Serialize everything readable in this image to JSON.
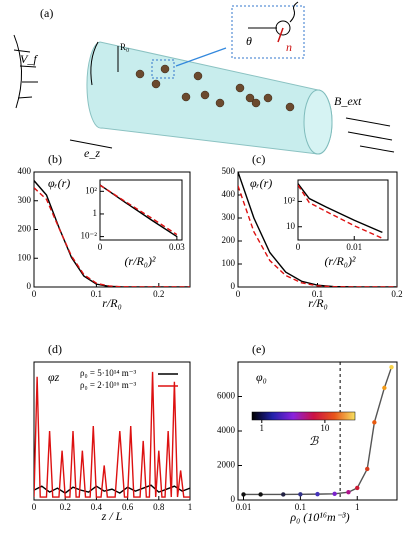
{
  "diagram": {
    "panel_label": "(a)",
    "flow_label": "V_f",
    "radius_label": "R₀",
    "angle_label": "θ",
    "director_label": "n",
    "field_label": "B_ext",
    "axis_label": "e_z"
  },
  "chart_data": [
    {
      "type": "line",
      "panel_label": "(b)",
      "curve_label": "φᵣ(r)",
      "xlabel": "r/R₀",
      "xlim": [
        0,
        0.25
      ],
      "xticks": [
        0,
        0.1,
        0.2
      ],
      "ylim": [
        0,
        400
      ],
      "yticks": [
        0,
        100,
        200,
        300,
        400
      ],
      "series": [
        {
          "color": "#000000",
          "dash": false,
          "x": [
            0,
            0.02,
            0.04,
            0.06,
            0.08,
            0.1,
            0.12,
            0.14,
            0.16,
            0.2,
            0.25
          ],
          "values": [
            370,
            320,
            207,
            103,
            38,
            10,
            2.2,
            0.4,
            0,
            0,
            0
          ]
        },
        {
          "color": "#dd1111",
          "dash": true,
          "x": [
            0,
            0.02,
            0.04,
            0.06,
            0.08,
            0.1,
            0.12,
            0.14,
            0.16,
            0.2,
            0.25
          ],
          "values": [
            345,
            305,
            205,
            108,
            43,
            13,
            3.5,
            0.8,
            0.1,
            0,
            0
          ]
        }
      ],
      "inset": {
        "type": "line",
        "xlabel": "(r/R₀)²",
        "xlim": [
          0,
          0.032
        ],
        "xticks": [
          0,
          0.03
        ],
        "ylog": true,
        "ylim": [
          0.005,
          1000
        ],
        "yticks": [
          {
            "value": 0.01,
            "label": "10⁻²"
          },
          1,
          {
            "value": 100,
            "label": "10²"
          }
        ],
        "series": [
          {
            "color": "#000000",
            "dash": false,
            "x": [
              0,
              0.01,
              0.02,
              0.03
            ],
            "values": [
              370,
              10,
              0.3,
              0.01
            ]
          },
          {
            "color": "#dd1111",
            "dash": true,
            "x": [
              0,
              0.01,
              0.02,
              0.03
            ],
            "values": [
              345,
              12,
              0.45,
              0.015
            ]
          }
        ]
      }
    },
    {
      "type": "line",
      "panel_label": "(c)",
      "curve_label": "φᵣ(r)",
      "xlabel": "r/R₀",
      "xlim": [
        0,
        0.2
      ],
      "xticks": [
        0,
        0.1,
        0.2
      ],
      "ylim": [
        0,
        500
      ],
      "yticks": [
        0,
        100,
        200,
        300,
        400,
        500
      ],
      "series": [
        {
          "color": "#000000",
          "dash": false,
          "x": [
            0,
            0.02,
            0.04,
            0.06,
            0.08,
            0.1,
            0.12,
            0.15,
            0.2
          ],
          "values": [
            500,
            300,
            150,
            65,
            25,
            8,
            2,
            0,
            0
          ]
        },
        {
          "color": "#dd1111",
          "dash": true,
          "x": [
            0,
            0.02,
            0.04,
            0.06,
            0.08,
            0.1,
            0.12,
            0.15,
            0.2
          ],
          "values": [
            440,
            240,
            115,
            50,
            18,
            5,
            1,
            0,
            0
          ]
        }
      ],
      "inset": {
        "type": "line",
        "xlabel": "(r/R₀)²",
        "xlim": [
          0,
          0.016
        ],
        "xticks": [
          0,
          0.01
        ],
        "ylog": true,
        "ylim": [
          3,
          700
        ],
        "yticks": [
          10,
          {
            "value": 100,
            "label": "10²"
          }
        ],
        "series": [
          {
            "color": "#000000",
            "dash": false,
            "x": [
              0,
              0.002,
              0.005,
              0.01,
              0.015
            ],
            "values": [
              500,
              130,
              60,
              18,
              6
            ]
          },
          {
            "color": "#dd1111",
            "dash": true,
            "x": [
              0,
              0.002,
              0.005,
              0.01,
              0.015
            ],
            "values": [
              440,
              90,
              40,
              11,
              3.5
            ]
          }
        ]
      }
    },
    {
      "type": "line",
      "panel_label": "(d)",
      "curve_label": "φz",
      "xlabel": "z / L",
      "legend": "upper left",
      "xlim": [
        0,
        1
      ],
      "xticks": [
        0,
        0.2,
        0.4,
        0.6,
        0.8,
        1
      ],
      "ylim": [
        0,
        14
      ],
      "series": [
        {
          "name": "ρ₀ = 5·10¹⁴ m⁻³",
          "color": "#000000",
          "dash": false,
          "x": [
            0,
            0.05,
            0.1,
            0.15,
            0.2,
            0.25,
            0.3,
            0.35,
            0.4,
            0.45,
            0.5,
            0.55,
            0.6,
            0.65,
            0.7,
            0.75,
            0.8,
            0.85,
            0.9,
            0.95,
            1
          ],
          "values": [
            1.0,
            1.4,
            0.8,
            1.2,
            0.7,
            1.3,
            1.0,
            0.8,
            1.4,
            0.9,
            1.1,
            0.7,
            1.3,
            0.9,
            1.2,
            1.5,
            0.8,
            1.1,
            1.4,
            0.9,
            1.2
          ]
        },
        {
          "name": "ρ₀ = 2·10¹⁶ m⁻³",
          "color": "#dd1111",
          "dash": false,
          "x": [
            0,
            0.02,
            0.04,
            0.08,
            0.1,
            0.12,
            0.16,
            0.18,
            0.2,
            0.23,
            0.25,
            0.27,
            0.29,
            0.31,
            0.33,
            0.36,
            0.38,
            0.4,
            0.43,
            0.45,
            0.47,
            0.52,
            0.55,
            0.58,
            0.6,
            0.62,
            0.64,
            0.68,
            0.7,
            0.72,
            0.74,
            0.76,
            0.78,
            0.8,
            0.82,
            0.84,
            0.86,
            0.88,
            0.9,
            0.92,
            0.94,
            0.96,
            1
          ],
          "values": [
            0.3,
            12.5,
            0.3,
            0.3,
            7,
            0.3,
            0.3,
            5,
            0.3,
            0.3,
            7,
            0.3,
            0.3,
            5,
            0.3,
            0.3,
            7.5,
            0.3,
            0.3,
            3.5,
            0.3,
            0.3,
            7,
            0.3,
            0.3,
            7.5,
            0.3,
            0.3,
            6,
            0.3,
            0.3,
            13,
            0.3,
            5,
            0.3,
            0.3,
            7,
            0.3,
            12,
            0.3,
            3,
            0.3,
            0.3
          ]
        }
      ]
    },
    {
      "type": "scatter-line",
      "panel_label": "(e)",
      "curve_label": "φ₀",
      "xlabel": "ρ₀ (10¹⁶m⁻³)",
      "xlog": true,
      "xlim": [
        0.008,
        5
      ],
      "xticks": [
        0.01,
        0.1,
        1
      ],
      "ylim": [
        0,
        8000
      ],
      "yticks": [
        0,
        2000,
        4000,
        6000
      ],
      "vline": 0.5,
      "series": [
        {
          "color": "#555555",
          "dash": false,
          "x": [
            0.01,
            0.02,
            0.05,
            0.1,
            0.2,
            0.4,
            0.7,
            1,
            1.5,
            2,
            3,
            4
          ],
          "values": [
            320,
            320,
            320,
            330,
            340,
            360,
            450,
            700,
            1800,
            4500,
            6500,
            7700
          ],
          "colors": [
            "#111111",
            "#111111",
            "#222244",
            "#33338a",
            "#4433bb",
            "#7a22cc",
            "#b0148c",
            "#cc1a33",
            "#d83a1a",
            "#e85a10",
            "#f29a18",
            "#f7d24a"
          ]
        }
      ],
      "colorbar": {
        "label": "ℬ",
        "colors": [
          "#000000",
          "#2222aa",
          "#8a22dd",
          "#cc1144",
          "#e8551a",
          "#f7e060"
        ],
        "log": true,
        "lim": [
          0.7,
          30
        ],
        "ticks": [
          1,
          10
        ]
      }
    }
  ]
}
